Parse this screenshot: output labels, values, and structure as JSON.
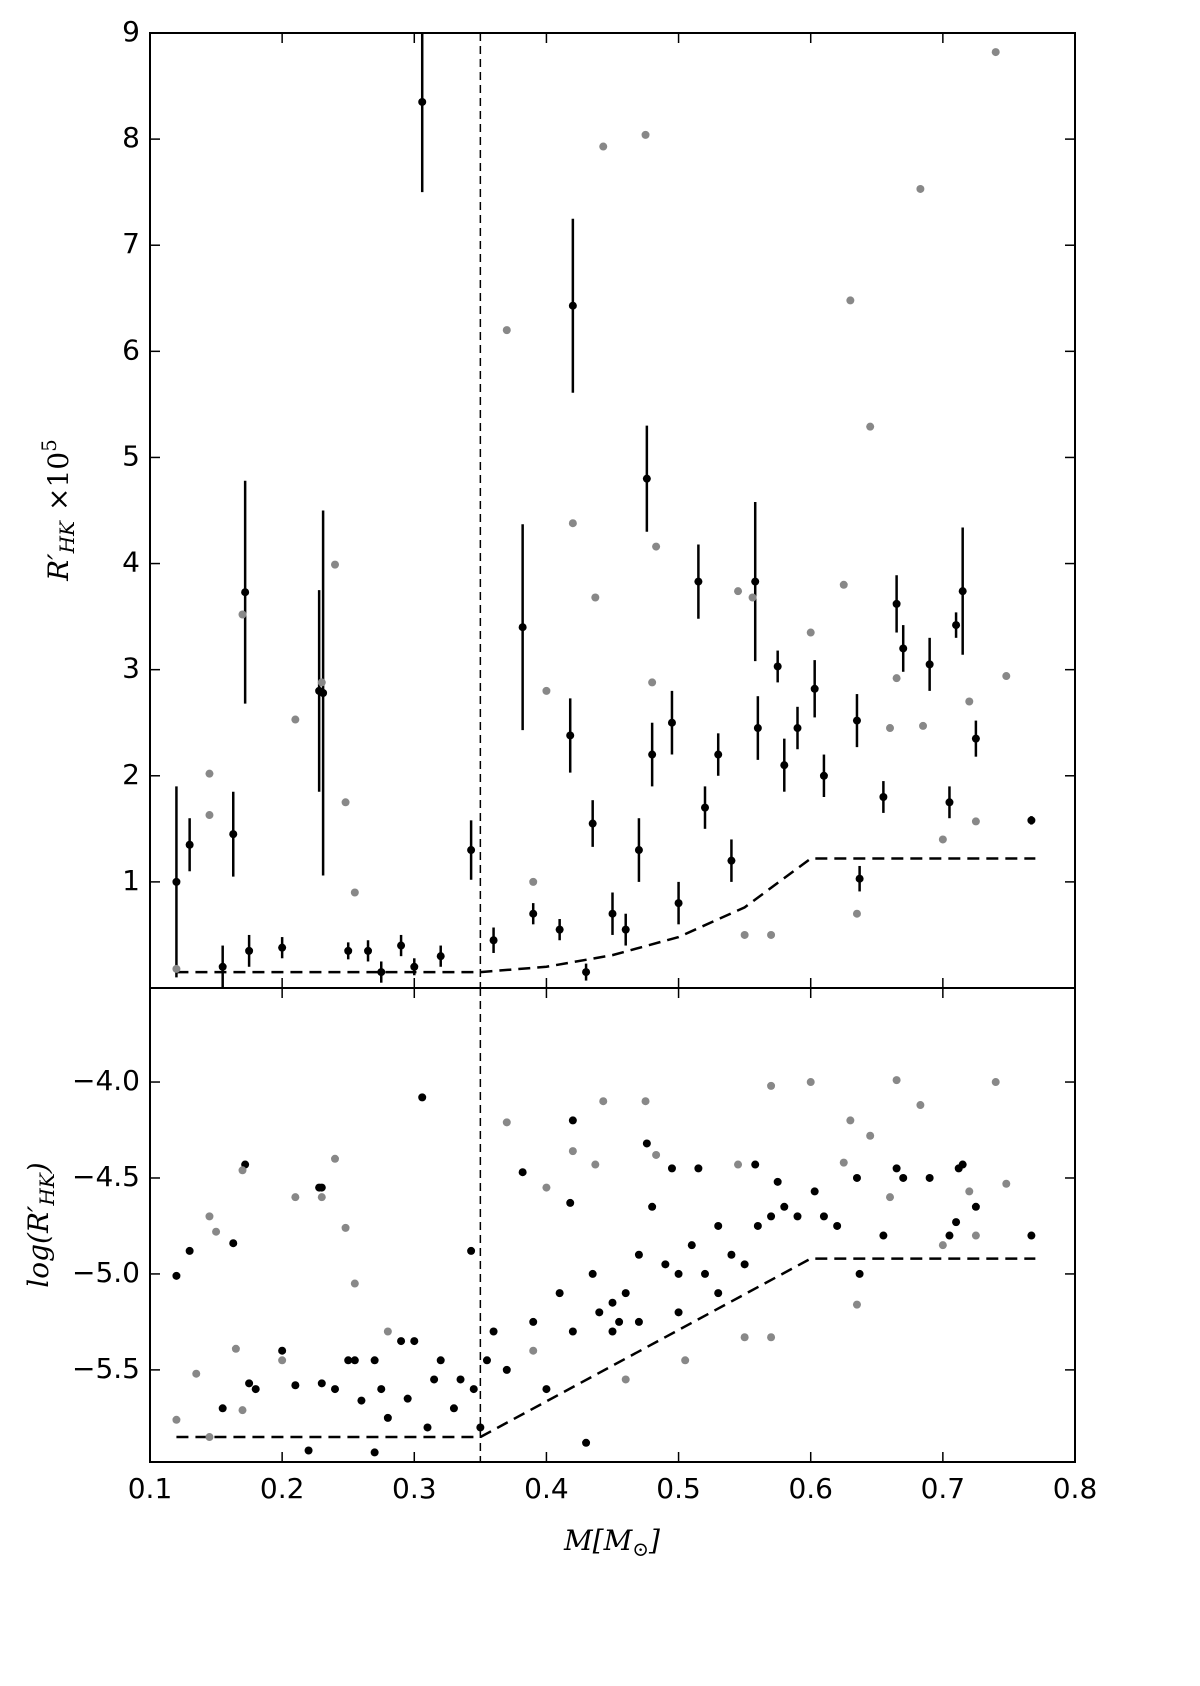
{
  "chart_data": [
    {
      "type": "scatter",
      "ylabel": {
        "base": "R′",
        "sub": "HK",
        "mult": "×10",
        "sup": "5"
      },
      "xlim": [
        0.1,
        0.8
      ],
      "ylim": [
        0,
        9
      ],
      "yticks": [
        1,
        2,
        3,
        4,
        5,
        6,
        7,
        8,
        9
      ],
      "series": [
        {
          "color": "#000000",
          "x": [
            0.12,
            0.13,
            0.163,
            0.172,
            0.175,
            0.2,
            0.228,
            0.231,
            0.25,
            0.265,
            0.29,
            0.306,
            0.32,
            0.343,
            0.36,
            0.382,
            0.39,
            0.418,
            0.42,
            0.435,
            0.45,
            0.47,
            0.476,
            0.48,
            0.495,
            0.515,
            0.52,
            0.53,
            0.558,
            0.56,
            0.575,
            0.58,
            0.59,
            0.603,
            0.61,
            0.635,
            0.637,
            0.655,
            0.665,
            0.67,
            0.69,
            0.705,
            0.71,
            0.715,
            0.725,
            0.767,
            0.5,
            0.54,
            0.46,
            0.41,
            0.43,
            0.3,
            0.275,
            0.155
          ],
          "values": [
            1.0,
            1.35,
            1.45,
            3.73,
            0.35,
            0.38,
            2.8,
            2.78,
            0.35,
            0.35,
            0.4,
            8.35,
            0.3,
            1.3,
            0.45,
            3.4,
            0.7,
            2.38,
            6.43,
            1.55,
            0.7,
            1.3,
            4.8,
            2.2,
            2.5,
            3.83,
            1.7,
            2.2,
            3.83,
            2.45,
            3.03,
            2.1,
            2.45,
            2.82,
            2.0,
            2.52,
            1.03,
            1.8,
            3.62,
            3.2,
            3.05,
            1.75,
            3.42,
            3.74,
            2.35,
            1.58,
            0.8,
            1.2,
            0.55,
            0.55,
            0.15,
            0.2,
            0.15,
            0.2
          ],
          "errors": [
            0.9,
            0.25,
            0.4,
            1.05,
            0.15,
            0.1,
            0.95,
            1.72,
            0.08,
            0.1,
            0.1,
            0.85,
            0.1,
            0.28,
            0.12,
            0.97,
            0.1,
            0.35,
            0.82,
            0.22,
            0.2,
            0.3,
            0.5,
            0.3,
            0.3,
            0.35,
            0.2,
            0.2,
            0.75,
            0.3,
            0.15,
            0.25,
            0.2,
            0.27,
            0.2,
            0.25,
            0.12,
            0.15,
            0.27,
            0.22,
            0.25,
            0.15,
            0.12,
            0.6,
            0.17,
            0.04,
            0.2,
            0.2,
            0.15,
            0.1,
            0.08,
            0.08,
            0.1,
            0.2
          ]
        },
        {
          "color": "#888888",
          "x": [
            0.12,
            0.145,
            0.145,
            0.17,
            0.21,
            0.24,
            0.248,
            0.255,
            0.23,
            0.37,
            0.4,
            0.437,
            0.443,
            0.42,
            0.475,
            0.483,
            0.48,
            0.545,
            0.556,
            0.6,
            0.625,
            0.63,
            0.645,
            0.66,
            0.665,
            0.683,
            0.685,
            0.72,
            0.74,
            0.748,
            0.725,
            0.635,
            0.57,
            0.39,
            0.55,
            0.7
          ],
          "values": [
            0.18,
            2.02,
            1.63,
            3.52,
            2.53,
            3.99,
            1.75,
            0.9,
            2.88,
            6.2,
            2.8,
            3.68,
            7.93,
            4.38,
            8.04,
            4.16,
            2.88,
            3.74,
            3.68,
            3.35,
            3.8,
            6.48,
            5.29,
            2.45,
            2.92,
            7.53,
            2.47,
            2.7,
            8.82,
            2.94,
            1.57,
            0.7,
            0.5,
            1.0,
            0.5,
            1.4
          ]
        }
      ],
      "reference_lines": [
        {
          "style": "dashed",
          "x": [
            0.12,
            0.35,
            0.4,
            0.45,
            0.5,
            0.55,
            0.6,
            0.77
          ],
          "values": [
            0.15,
            0.15,
            0.2,
            0.31,
            0.48,
            0.76,
            1.22,
            1.22
          ]
        }
      ],
      "vlines": [
        0.35
      ]
    },
    {
      "type": "scatter",
      "ylabel": {
        "pre": "log(R′",
        "sub": "HK",
        "post": ")"
      },
      "xlabel": {
        "pre": "M[M",
        "sub": "⊙",
        "post": "]"
      },
      "xlim": [
        0.1,
        0.8
      ],
      "xticks": [
        0.1,
        0.2,
        0.3,
        0.4,
        0.5,
        0.6,
        0.7,
        0.8
      ],
      "ylim": [
        -5.98,
        -3.51
      ],
      "yticks": [
        {
          "value": -5.5,
          "label": "−5.5"
        },
        {
          "value": -5.0,
          "label": "−5.0"
        },
        {
          "value": -4.5,
          "label": "−4.5"
        },
        {
          "value": -4.0,
          "label": "−4.0"
        }
      ],
      "series": [
        {
          "color": "#000000",
          "x": [
            0.12,
            0.13,
            0.163,
            0.172,
            0.175,
            0.155,
            0.18,
            0.2,
            0.21,
            0.22,
            0.228,
            0.23,
            0.23,
            0.24,
            0.25,
            0.255,
            0.26,
            0.27,
            0.275,
            0.27,
            0.28,
            0.29,
            0.295,
            0.3,
            0.306,
            0.31,
            0.315,
            0.32,
            0.33,
            0.335,
            0.343,
            0.345,
            0.35,
            0.355,
            0.36,
            0.37,
            0.382,
            0.39,
            0.4,
            0.41,
            0.418,
            0.42,
            0.42,
            0.43,
            0.435,
            0.44,
            0.45,
            0.455,
            0.46,
            0.47,
            0.476,
            0.48,
            0.49,
            0.495,
            0.5,
            0.51,
            0.515,
            0.52,
            0.53,
            0.54,
            0.55,
            0.558,
            0.56,
            0.57,
            0.575,
            0.58,
            0.59,
            0.603,
            0.61,
            0.62,
            0.635,
            0.637,
            0.655,
            0.665,
            0.67,
            0.69,
            0.705,
            0.71,
            0.712,
            0.715,
            0.725,
            0.767,
            0.45,
            0.47,
            0.5,
            0.53
          ],
          "values": [
            -5.01,
            -4.88,
            -4.84,
            -4.43,
            -5.57,
            -5.7,
            -5.6,
            -5.4,
            -5.58,
            -5.92,
            -4.55,
            -4.55,
            -5.57,
            -5.6,
            -5.45,
            -5.45,
            -5.66,
            -5.45,
            -5.6,
            -5.93,
            -5.75,
            -5.35,
            -5.65,
            -5.35,
            -4.08,
            -5.8,
            -5.55,
            -5.45,
            -5.7,
            -5.55,
            -4.88,
            -5.6,
            -5.8,
            -5.45,
            -5.3,
            -5.5,
            -4.47,
            -5.25,
            -5.6,
            -5.1,
            -4.63,
            -4.2,
            -5.3,
            -5.88,
            -5.0,
            -5.2,
            -5.15,
            -5.25,
            -5.1,
            -4.9,
            -4.32,
            -4.65,
            -4.95,
            -4.45,
            -5.2,
            -4.85,
            -4.45,
            -5.0,
            -4.75,
            -4.9,
            -4.95,
            -4.43,
            -4.75,
            -4.7,
            -4.52,
            -4.65,
            -4.7,
            -4.57,
            -4.7,
            -4.75,
            -4.5,
            -5.0,
            -4.8,
            -4.45,
            -4.5,
            -4.5,
            -4.8,
            -4.73,
            -4.45,
            -4.43,
            -4.65,
            -4.8,
            -5.3,
            -5.25,
            -5.0,
            -5.1
          ]
        },
        {
          "color": "#888888",
          "x": [
            0.12,
            0.135,
            0.145,
            0.145,
            0.15,
            0.165,
            0.17,
            0.17,
            0.2,
            0.21,
            0.23,
            0.24,
            0.248,
            0.255,
            0.28,
            0.37,
            0.4,
            0.42,
            0.437,
            0.443,
            0.475,
            0.483,
            0.545,
            0.57,
            0.6,
            0.625,
            0.63,
            0.645,
            0.66,
            0.665,
            0.683,
            0.72,
            0.74,
            0.748,
            0.725,
            0.635,
            0.57,
            0.55,
            0.505,
            0.39,
            0.7,
            0.46
          ],
          "values": [
            -5.76,
            -5.52,
            -5.85,
            -4.7,
            -4.78,
            -5.39,
            -5.71,
            -4.46,
            -5.45,
            -4.6,
            -4.6,
            -4.4,
            -4.76,
            -5.05,
            -5.3,
            -4.21,
            -4.55,
            -4.36,
            -4.43,
            -4.1,
            -4.1,
            -4.38,
            -4.43,
            -4.02,
            -4.0,
            -4.42,
            -4.2,
            -4.28,
            -4.6,
            -3.99,
            -4.12,
            -4.57,
            -4.0,
            -4.53,
            -4.8,
            -5.16,
            -5.33,
            -5.33,
            -5.45,
            -5.4,
            -4.85,
            -5.55
          ]
        }
      ],
      "reference_lines": [
        {
          "style": "dashed",
          "x": [
            0.12,
            0.35,
            0.6,
            0.77
          ],
          "values": [
            -5.85,
            -5.85,
            -4.92,
            -4.92
          ]
        }
      ],
      "vlines": [
        0.35
      ]
    }
  ]
}
